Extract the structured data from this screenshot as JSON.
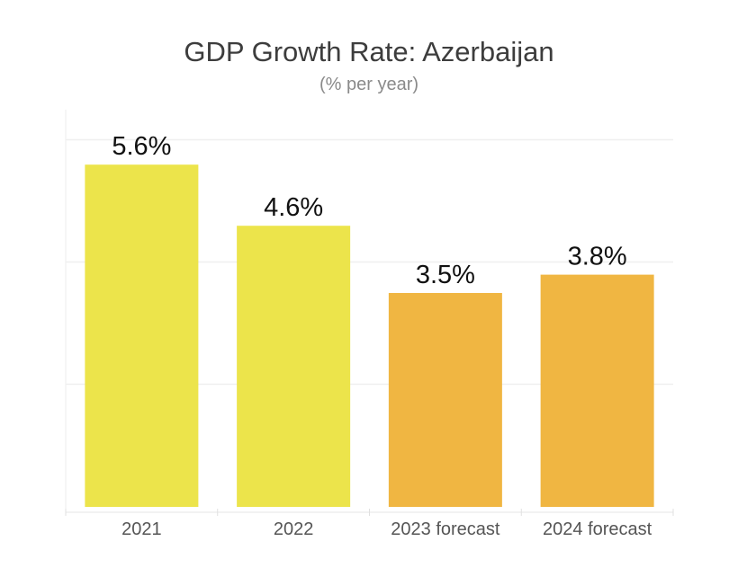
{
  "chart_data": {
    "type": "bar",
    "title": "GDP Growth Rate: Azerbaijan",
    "subtitle": "(% per year)",
    "categories": [
      "2021",
      "2022",
      "2023 forecast",
      "2024 forecast"
    ],
    "values": [
      5.6,
      4.6,
      3.5,
      3.8
    ],
    "data_labels": [
      "5.6%",
      "4.6%",
      "3.5%",
      "3.8%"
    ],
    "bar_colors": [
      "#ece44b",
      "#ece44b",
      "#f0b642",
      "#f0b642"
    ],
    "ylim": [
      0,
      6
    ],
    "grid": true,
    "legend": "none",
    "xlabel": "",
    "ylabel": ""
  }
}
